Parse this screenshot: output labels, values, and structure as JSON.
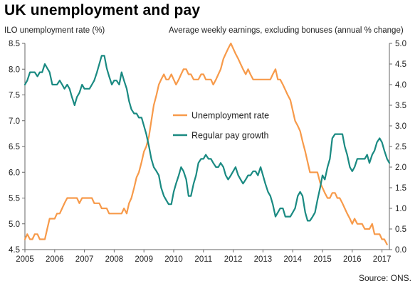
{
  "title": "UK unemployment and pay",
  "source": "Source: ONS.",
  "colors": {
    "unemployment": "#f79a4a",
    "pay": "#1a8a82",
    "axis": "#666666",
    "grid": "#bbbbbb"
  },
  "chart_data": {
    "type": "line",
    "title": "UK unemployment and pay",
    "ylabel_left": "ILO unemployment rate (%)",
    "ylabel_right": "Average weekly earnings, excluding bonuses  (annual % change)",
    "xlabel": "",
    "x_ticks": [
      "2005",
      "2006",
      "2007",
      "2008",
      "2009",
      "2010",
      "2011",
      "2012",
      "2013",
      "2014",
      "2015",
      "2016",
      "2017"
    ],
    "xlim": [
      2005.0,
      2017.25
    ],
    "y_left_ticks": [
      "4.5",
      "5.0",
      "5.5",
      "6.0",
      "6.5",
      "7.0",
      "7.5",
      "8.0",
      "8.5"
    ],
    "y_right_ticks": [
      "0.0",
      "0.5",
      "1.0",
      "1.5",
      "2.0",
      "2.5",
      "3.0",
      "3.5",
      "4.0",
      "4.5",
      "5.0"
    ],
    "ylim_left": [
      4.5,
      8.5
    ],
    "ylim_right": [
      0.0,
      5.0
    ],
    "grid": false,
    "legend_position": "center",
    "series": [
      {
        "name": "Unemployment rate",
        "axis": "left",
        "points": [
          [
            2005.0,
            4.7
          ],
          [
            2005.08,
            4.8
          ],
          [
            2005.17,
            4.7
          ],
          [
            2005.25,
            4.7
          ],
          [
            2005.33,
            4.8
          ],
          [
            2005.42,
            4.8
          ],
          [
            2005.5,
            4.7
          ],
          [
            2005.58,
            4.7
          ],
          [
            2005.67,
            4.7
          ],
          [
            2005.75,
            4.9
          ],
          [
            2005.83,
            5.1
          ],
          [
            2005.92,
            5.1
          ],
          [
            2006.0,
            5.1
          ],
          [
            2006.08,
            5.2
          ],
          [
            2006.17,
            5.2
          ],
          [
            2006.25,
            5.3
          ],
          [
            2006.33,
            5.4
          ],
          [
            2006.42,
            5.5
          ],
          [
            2006.5,
            5.5
          ],
          [
            2006.58,
            5.5
          ],
          [
            2006.67,
            5.5
          ],
          [
            2006.75,
            5.5
          ],
          [
            2006.83,
            5.4
          ],
          [
            2006.92,
            5.5
          ],
          [
            2007.0,
            5.5
          ],
          [
            2007.08,
            5.5
          ],
          [
            2007.17,
            5.5
          ],
          [
            2007.25,
            5.5
          ],
          [
            2007.33,
            5.4
          ],
          [
            2007.42,
            5.4
          ],
          [
            2007.5,
            5.4
          ],
          [
            2007.58,
            5.3
          ],
          [
            2007.67,
            5.3
          ],
          [
            2007.75,
            5.3
          ],
          [
            2007.83,
            5.2
          ],
          [
            2007.92,
            5.2
          ],
          [
            2008.0,
            5.2
          ],
          [
            2008.08,
            5.2
          ],
          [
            2008.17,
            5.2
          ],
          [
            2008.25,
            5.2
          ],
          [
            2008.33,
            5.3
          ],
          [
            2008.42,
            5.2
          ],
          [
            2008.5,
            5.4
          ],
          [
            2008.58,
            5.5
          ],
          [
            2008.67,
            5.7
          ],
          [
            2008.75,
            5.9
          ],
          [
            2008.83,
            6.0
          ],
          [
            2008.92,
            6.2
          ],
          [
            2009.0,
            6.4
          ],
          [
            2009.08,
            6.5
          ],
          [
            2009.17,
            6.7
          ],
          [
            2009.25,
            7.0
          ],
          [
            2009.33,
            7.3
          ],
          [
            2009.42,
            7.5
          ],
          [
            2009.5,
            7.7
          ],
          [
            2009.58,
            7.8
          ],
          [
            2009.67,
            7.9
          ],
          [
            2009.75,
            7.8
          ],
          [
            2009.83,
            7.8
          ],
          [
            2009.92,
            7.9
          ],
          [
            2010.0,
            7.8
          ],
          [
            2010.08,
            7.7
          ],
          [
            2010.17,
            7.8
          ],
          [
            2010.25,
            7.9
          ],
          [
            2010.33,
            8.0
          ],
          [
            2010.42,
            8.0
          ],
          [
            2010.5,
            7.9
          ],
          [
            2010.58,
            7.9
          ],
          [
            2010.67,
            7.8
          ],
          [
            2010.75,
            7.8
          ],
          [
            2010.83,
            7.8
          ],
          [
            2010.92,
            7.9
          ],
          [
            2011.0,
            7.9
          ],
          [
            2011.08,
            7.8
          ],
          [
            2011.17,
            7.8
          ],
          [
            2011.25,
            7.8
          ],
          [
            2011.33,
            7.7
          ],
          [
            2011.42,
            7.8
          ],
          [
            2011.5,
            7.9
          ],
          [
            2011.58,
            8.0
          ],
          [
            2011.67,
            8.2
          ],
          [
            2011.75,
            8.3
          ],
          [
            2011.83,
            8.4
          ],
          [
            2011.92,
            8.5
          ],
          [
            2012.0,
            8.4
          ],
          [
            2012.08,
            8.3
          ],
          [
            2012.17,
            8.2
          ],
          [
            2012.25,
            8.1
          ],
          [
            2012.33,
            8.0
          ],
          [
            2012.42,
            7.9
          ],
          [
            2012.5,
            8.0
          ],
          [
            2012.58,
            7.9
          ],
          [
            2012.67,
            7.8
          ],
          [
            2012.75,
            7.8
          ],
          [
            2012.83,
            7.8
          ],
          [
            2012.92,
            7.8
          ],
          [
            2013.0,
            7.8
          ],
          [
            2013.08,
            7.8
          ],
          [
            2013.17,
            7.8
          ],
          [
            2013.25,
            7.8
          ],
          [
            2013.33,
            7.9
          ],
          [
            2013.42,
            8.0
          ],
          [
            2013.5,
            7.8
          ],
          [
            2013.58,
            7.8
          ],
          [
            2013.67,
            7.7
          ],
          [
            2013.75,
            7.6
          ],
          [
            2013.83,
            7.5
          ],
          [
            2013.92,
            7.4
          ],
          [
            2014.0,
            7.2
          ],
          [
            2014.08,
            7.0
          ],
          [
            2014.17,
            6.9
          ],
          [
            2014.25,
            6.8
          ],
          [
            2014.33,
            6.6
          ],
          [
            2014.42,
            6.4
          ],
          [
            2014.5,
            6.2
          ],
          [
            2014.58,
            6.0
          ],
          [
            2014.67,
            6.0
          ],
          [
            2014.75,
            6.0
          ],
          [
            2014.83,
            6.0
          ],
          [
            2014.92,
            5.8
          ],
          [
            2015.0,
            5.7
          ],
          [
            2015.08,
            5.6
          ],
          [
            2015.17,
            5.5
          ],
          [
            2015.25,
            5.5
          ],
          [
            2015.33,
            5.6
          ],
          [
            2015.42,
            5.6
          ],
          [
            2015.5,
            5.5
          ],
          [
            2015.58,
            5.5
          ],
          [
            2015.67,
            5.4
          ],
          [
            2015.75,
            5.3
          ],
          [
            2015.83,
            5.2
          ],
          [
            2015.92,
            5.1
          ],
          [
            2016.0,
            5.0
          ],
          [
            2016.08,
            5.1
          ],
          [
            2016.17,
            5.0
          ],
          [
            2016.25,
            5.0
          ],
          [
            2016.33,
            5.0
          ],
          [
            2016.42,
            4.9
          ],
          [
            2016.5,
            4.9
          ],
          [
            2016.58,
            4.9
          ],
          [
            2016.67,
            5.0
          ],
          [
            2016.75,
            4.8
          ],
          [
            2016.83,
            4.8
          ],
          [
            2016.92,
            4.8
          ],
          [
            2017.0,
            4.7
          ],
          [
            2017.08,
            4.7
          ],
          [
            2017.17,
            4.6
          ]
        ]
      },
      {
        "name": "Regular pay growth",
        "axis": "right",
        "points": [
          [
            2005.0,
            4.0
          ],
          [
            2005.08,
            4.1
          ],
          [
            2005.17,
            4.3
          ],
          [
            2005.25,
            4.3
          ],
          [
            2005.33,
            4.3
          ],
          [
            2005.42,
            4.2
          ],
          [
            2005.5,
            4.3
          ],
          [
            2005.58,
            4.3
          ],
          [
            2005.67,
            4.5
          ],
          [
            2005.75,
            4.4
          ],
          [
            2005.83,
            4.3
          ],
          [
            2005.92,
            4.0
          ],
          [
            2006.0,
            4.0
          ],
          [
            2006.08,
            4.0
          ],
          [
            2006.17,
            4.1
          ],
          [
            2006.25,
            4.0
          ],
          [
            2006.33,
            3.9
          ],
          [
            2006.42,
            4.0
          ],
          [
            2006.5,
            3.9
          ],
          [
            2006.58,
            3.7
          ],
          [
            2006.67,
            3.5
          ],
          [
            2006.75,
            3.7
          ],
          [
            2006.83,
            3.8
          ],
          [
            2006.92,
            4.0
          ],
          [
            2007.0,
            3.9
          ],
          [
            2007.08,
            3.9
          ],
          [
            2007.17,
            3.9
          ],
          [
            2007.25,
            4.0
          ],
          [
            2007.33,
            4.1
          ],
          [
            2007.42,
            4.3
          ],
          [
            2007.5,
            4.5
          ],
          [
            2007.58,
            4.7
          ],
          [
            2007.67,
            4.7
          ],
          [
            2007.75,
            4.4
          ],
          [
            2007.83,
            4.2
          ],
          [
            2007.92,
            4.0
          ],
          [
            2008.0,
            4.1
          ],
          [
            2008.08,
            4.1
          ],
          [
            2008.17,
            4.0
          ],
          [
            2008.25,
            4.3
          ],
          [
            2008.33,
            4.1
          ],
          [
            2008.42,
            3.9
          ],
          [
            2008.5,
            3.6
          ],
          [
            2008.58,
            3.4
          ],
          [
            2008.67,
            3.3
          ],
          [
            2008.75,
            3.3
          ],
          [
            2008.83,
            3.2
          ],
          [
            2008.92,
            3.2
          ],
          [
            2009.0,
            3.0
          ],
          [
            2009.08,
            2.8
          ],
          [
            2009.17,
            2.5
          ],
          [
            2009.25,
            2.2
          ],
          [
            2009.33,
            2.0
          ],
          [
            2009.42,
            1.9
          ],
          [
            2009.5,
            1.8
          ],
          [
            2009.58,
            1.5
          ],
          [
            2009.67,
            1.3
          ],
          [
            2009.75,
            1.2
          ],
          [
            2009.83,
            1.1
          ],
          [
            2009.92,
            1.1
          ],
          [
            2010.0,
            1.4
          ],
          [
            2010.08,
            1.6
          ],
          [
            2010.17,
            1.8
          ],
          [
            2010.25,
            2.0
          ],
          [
            2010.33,
            1.9
          ],
          [
            2010.42,
            1.7
          ],
          [
            2010.5,
            1.3
          ],
          [
            2010.58,
            1.3
          ],
          [
            2010.67,
            1.6
          ],
          [
            2010.75,
            1.8
          ],
          [
            2010.83,
            2.1
          ],
          [
            2010.92,
            2.2
          ],
          [
            2011.0,
            2.2
          ],
          [
            2011.08,
            2.3
          ],
          [
            2011.17,
            2.2
          ],
          [
            2011.25,
            2.2
          ],
          [
            2011.33,
            2.1
          ],
          [
            2011.42,
            2.0
          ],
          [
            2011.5,
            2.0
          ],
          [
            2011.58,
            2.1
          ],
          [
            2011.67,
            2.0
          ],
          [
            2011.75,
            1.8
          ],
          [
            2011.83,
            1.7
          ],
          [
            2011.92,
            1.8
          ],
          [
            2012.0,
            1.9
          ],
          [
            2012.08,
            2.0
          ],
          [
            2012.17,
            1.8
          ],
          [
            2012.25,
            1.7
          ],
          [
            2012.33,
            1.6
          ],
          [
            2012.42,
            1.7
          ],
          [
            2012.5,
            1.8
          ],
          [
            2012.58,
            1.8
          ],
          [
            2012.67,
            1.9
          ],
          [
            2012.75,
            1.9
          ],
          [
            2012.83,
            1.8
          ],
          [
            2012.92,
            2.0
          ],
          [
            2013.0,
            1.8
          ],
          [
            2013.08,
            1.6
          ],
          [
            2013.17,
            1.4
          ],
          [
            2013.25,
            1.3
          ],
          [
            2013.33,
            1.1
          ],
          [
            2013.42,
            0.8
          ],
          [
            2013.5,
            0.9
          ],
          [
            2013.58,
            1.0
          ],
          [
            2013.67,
            1.0
          ],
          [
            2013.75,
            0.8
          ],
          [
            2013.83,
            0.8
          ],
          [
            2013.92,
            0.8
          ],
          [
            2014.0,
            0.9
          ],
          [
            2014.08,
            1.0
          ],
          [
            2014.17,
            1.3
          ],
          [
            2014.25,
            1.4
          ],
          [
            2014.33,
            1.3
          ],
          [
            2014.42,
            0.9
          ],
          [
            2014.5,
            0.7
          ],
          [
            2014.58,
            0.7
          ],
          [
            2014.67,
            0.8
          ],
          [
            2014.75,
            0.9
          ],
          [
            2014.83,
            1.2
          ],
          [
            2014.92,
            1.5
          ],
          [
            2015.0,
            1.8
          ],
          [
            2015.08,
            1.7
          ],
          [
            2015.17,
            2.0
          ],
          [
            2015.25,
            2.2
          ],
          [
            2015.33,
            2.7
          ],
          [
            2015.42,
            2.8
          ],
          [
            2015.5,
            2.8
          ],
          [
            2015.58,
            2.8
          ],
          [
            2015.67,
            2.8
          ],
          [
            2015.75,
            2.5
          ],
          [
            2015.83,
            2.3
          ],
          [
            2015.92,
            2.0
          ],
          [
            2016.0,
            1.9
          ],
          [
            2016.08,
            2.0
          ],
          [
            2016.17,
            2.2
          ],
          [
            2016.25,
            2.2
          ],
          [
            2016.33,
            2.2
          ],
          [
            2016.42,
            2.2
          ],
          [
            2016.5,
            2.3
          ],
          [
            2016.58,
            2.1
          ],
          [
            2016.67,
            2.3
          ],
          [
            2016.75,
            2.4
          ],
          [
            2016.83,
            2.6
          ],
          [
            2016.92,
            2.7
          ],
          [
            2017.0,
            2.6
          ],
          [
            2017.08,
            2.4
          ],
          [
            2017.17,
            2.2
          ],
          [
            2017.25,
            2.1
          ]
        ]
      }
    ]
  }
}
